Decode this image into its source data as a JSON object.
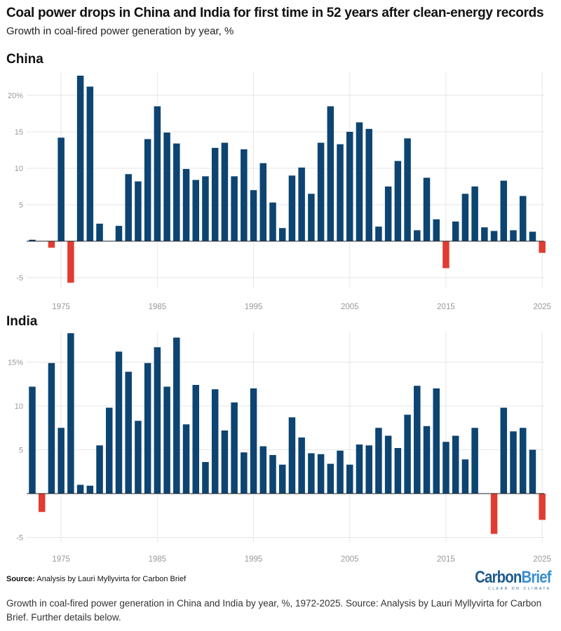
{
  "title": "Coal power drops in China and India for first time in 52 years after clean-energy records",
  "subtitle": "Growth in coal-fired power generation by year, %",
  "source_label": "Source:",
  "source_text": "Analysis by Lauri Myllyvirta for Carbon Brief",
  "logo": {
    "part1": "Carbon",
    "part2": "Brief",
    "tagline": "CLEAR ON CLIMATE"
  },
  "caption": "Growth in coal-fired power generation in China and India by year, %, 1972-2025. Source: Analysis by Lauri Myllyvirta for Carbon Brief. Further details below.",
  "colors": {
    "positive": "#0d4471",
    "negative": "#e03c31",
    "grid": "#e6e6e6",
    "tick": "#999999"
  },
  "chart_data": [
    {
      "type": "bar",
      "title": "China",
      "xlabel": "",
      "ylabel": "",
      "x_ticks": [
        "1975",
        "1985",
        "1995",
        "2005",
        "2015",
        "2025"
      ],
      "y_ticks": [
        {
          "value": -5,
          "label": "-5"
        },
        {
          "value": 5,
          "label": "5"
        },
        {
          "value": 10,
          "label": "10"
        },
        {
          "value": 15,
          "label": "15"
        },
        {
          "value": 20,
          "label": "20%"
        }
      ],
      "ylim": [
        -6,
        23
      ],
      "grid": true,
      "categories": [
        1972,
        1973,
        1974,
        1975,
        1976,
        1977,
        1978,
        1979,
        1980,
        1981,
        1982,
        1983,
        1984,
        1985,
        1986,
        1987,
        1988,
        1989,
        1990,
        1991,
        1992,
        1993,
        1994,
        1995,
        1996,
        1997,
        1998,
        1999,
        2000,
        2001,
        2002,
        2003,
        2004,
        2005,
        2006,
        2007,
        2008,
        2009,
        2010,
        2011,
        2012,
        2013,
        2014,
        2015,
        2016,
        2017,
        2018,
        2019,
        2020,
        2021,
        2022,
        2023,
        2024,
        2025
      ],
      "values": [
        0.2,
        0,
        -0.9,
        14.2,
        -5.7,
        22.7,
        21.2,
        2.4,
        0,
        2.1,
        9.2,
        8.2,
        14.0,
        18.5,
        14.9,
        13.4,
        9.9,
        8.4,
        8.9,
        12.8,
        13.5,
        8.9,
        12.6,
        7.0,
        10.7,
        5.3,
        1.8,
        9.0,
        10.1,
        6.5,
        13.5,
        18.5,
        13.3,
        15.0,
        16.3,
        15.4,
        2.0,
        7.5,
        11.0,
        14.1,
        1.5,
        8.7,
        3.0,
        -3.7,
        2.7,
        6.5,
        7.5,
        1.9,
        1.4,
        8.3,
        1.5,
        6.2,
        1.3,
        -1.6
      ]
    },
    {
      "type": "bar",
      "title": "India",
      "xlabel": "",
      "ylabel": "",
      "x_ticks": [
        "1975",
        "1985",
        "1995",
        "2005",
        "2015",
        "2025"
      ],
      "y_ticks": [
        {
          "value": -5,
          "label": "-5"
        },
        {
          "value": 5,
          "label": "5"
        },
        {
          "value": 10,
          "label": "10"
        },
        {
          "value": 15,
          "label": "15%"
        }
      ],
      "ylim": [
        -5.5,
        18.5
      ],
      "grid": true,
      "categories": [
        1972,
        1973,
        1974,
        1975,
        1976,
        1977,
        1978,
        1979,
        1980,
        1981,
        1982,
        1983,
        1984,
        1985,
        1986,
        1987,
        1988,
        1989,
        1990,
        1991,
        1992,
        1993,
        1994,
        1995,
        1996,
        1997,
        1998,
        1999,
        2000,
        2001,
        2002,
        2003,
        2004,
        2005,
        2006,
        2007,
        2008,
        2009,
        2010,
        2011,
        2012,
        2013,
        2014,
        2015,
        2016,
        2017,
        2018,
        2019,
        2020,
        2021,
        2022,
        2023,
        2024,
        2025
      ],
      "values": [
        12.2,
        -2.1,
        14.9,
        7.5,
        18.3,
        1.0,
        0.9,
        5.5,
        9.8,
        16.2,
        13.9,
        8.3,
        14.9,
        16.7,
        12.2,
        17.8,
        7.9,
        12.4,
        3.6,
        11.9,
        7.2,
        10.4,
        4.7,
        12.0,
        5.4,
        4.4,
        3.3,
        8.7,
        6.4,
        4.6,
        4.5,
        3.4,
        4.9,
        3.3,
        5.6,
        5.5,
        7.5,
        6.6,
        5.2,
        9.0,
        12.3,
        7.7,
        12.0,
        5.9,
        6.6,
        3.9,
        7.5,
        0,
        -4.6,
        9.8,
        7.1,
        7.5,
        5.0,
        -3.0
      ]
    }
  ]
}
